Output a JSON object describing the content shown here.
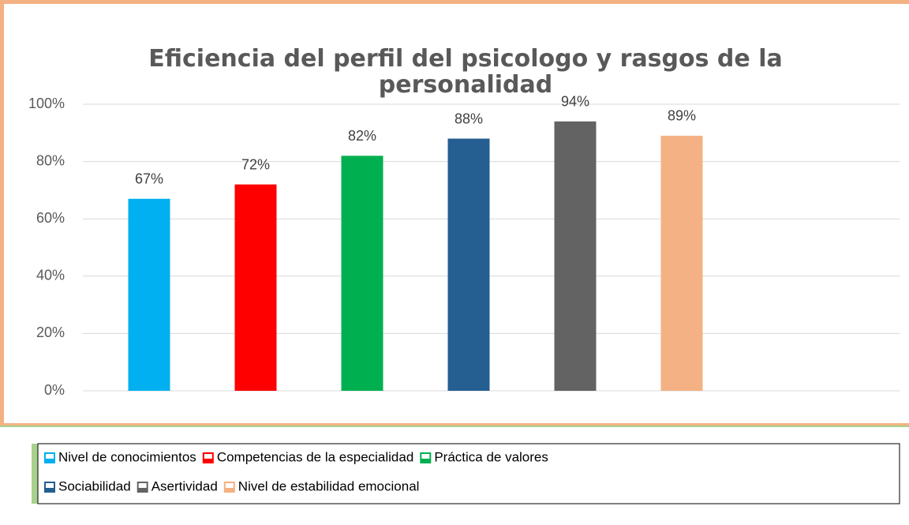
{
  "chart_data": {
    "type": "bar",
    "title": "Eficiencia del perfil del psicologo y rasgos de la personalidad",
    "series": [
      {
        "name": "Nivel de conocimientos",
        "color": "#00b0f0",
        "values": [
          67
        ],
        "value_labels": [
          "67%"
        ]
      },
      {
        "name": "Competencias de la especialidad",
        "color": "#ff0000",
        "values": [
          72
        ],
        "value_labels": [
          "72%"
        ]
      },
      {
        "name": "Práctica de valores",
        "color": "#00b050",
        "values": [
          82
        ],
        "value_labels": [
          "82%"
        ]
      },
      {
        "name": "Sociabilidad",
        "color": "#255e91",
        "values": [
          88
        ],
        "value_labels": [
          "88%"
        ]
      },
      {
        "name": "Asertividad",
        "color": "#636363",
        "values": [
          94
        ],
        "value_labels": [
          "94%"
        ]
      },
      {
        "name": "Nivel de estabilidad emocional",
        "color": "#f4b183",
        "values": [
          89
        ],
        "value_labels": [
          "89%"
        ]
      }
    ],
    "ylim": [
      0,
      100
    ],
    "yticks": [
      {
        "value": 0,
        "label": "0%"
      },
      {
        "value": 20,
        "label": "20%"
      },
      {
        "value": 40,
        "label": "40%"
      },
      {
        "value": 60,
        "label": "60%"
      },
      {
        "value": 80,
        "label": "80%"
      },
      {
        "value": 100,
        "label": "100%"
      }
    ],
    "grid": true,
    "legend": "bottom"
  }
}
